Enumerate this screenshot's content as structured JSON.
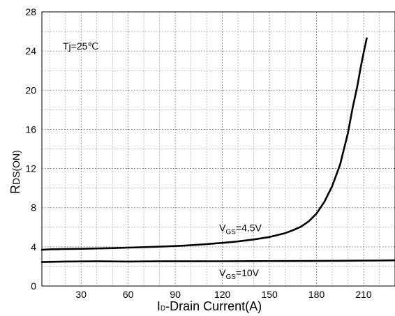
{
  "chart_data": {
    "type": "line",
    "xlabel": "ID-Drain Current(A)",
    "xlabel_main": "I",
    "xlabel_sub": "D",
    "xlabel_rest": "-Drain Current(A)",
    "ylabel_main": "R",
    "ylabel_sub": "DS(ON)",
    "xlim": [
      5,
      230
    ],
    "ylim": [
      0,
      28
    ],
    "x_ticks": [
      30,
      60,
      90,
      120,
      150,
      180,
      210
    ],
    "y_ticks": [
      0,
      4,
      8,
      12,
      16,
      20,
      24,
      28
    ],
    "x_minor_step": 10,
    "y_minor_step": 2,
    "grid": true,
    "annotations": {
      "condition": "Tj=25℃"
    },
    "series": [
      {
        "label_main": "V",
        "label_sub": "GS",
        "label_rest": "=4.5V",
        "label_at": [
          118,
          5.6
        ],
        "values": [
          [
            5,
            3.7
          ],
          [
            10,
            3.75
          ],
          [
            20,
            3.78
          ],
          [
            30,
            3.8
          ],
          [
            40,
            3.83
          ],
          [
            50,
            3.87
          ],
          [
            60,
            3.92
          ],
          [
            70,
            3.97
          ],
          [
            80,
            4.02
          ],
          [
            90,
            4.08
          ],
          [
            100,
            4.17
          ],
          [
            110,
            4.28
          ],
          [
            120,
            4.4
          ],
          [
            130,
            4.55
          ],
          [
            140,
            4.75
          ],
          [
            150,
            5.0
          ],
          [
            160,
            5.4
          ],
          [
            165,
            5.7
          ],
          [
            170,
            6.05
          ],
          [
            175,
            6.6
          ],
          [
            180,
            7.4
          ],
          [
            185,
            8.6
          ],
          [
            190,
            10.2
          ],
          [
            195,
            12.4
          ],
          [
            200,
            15.6
          ],
          [
            203,
            18.2
          ],
          [
            206,
            20.4
          ],
          [
            208,
            22.2
          ],
          [
            210,
            23.8
          ],
          [
            212,
            25.3
          ]
        ]
      },
      {
        "label_main": "V",
        "label_sub": "GS",
        "label_rest": "=10V",
        "label_at": [
          118,
          1.0
        ],
        "values": [
          [
            5,
            2.45
          ],
          [
            20,
            2.5
          ],
          [
            40,
            2.52
          ],
          [
            60,
            2.5
          ],
          [
            80,
            2.52
          ],
          [
            100,
            2.52
          ],
          [
            120,
            2.53
          ],
          [
            140,
            2.54
          ],
          [
            160,
            2.55
          ],
          [
            180,
            2.56
          ],
          [
            200,
            2.58
          ],
          [
            220,
            2.6
          ],
          [
            230,
            2.62
          ]
        ]
      }
    ]
  }
}
